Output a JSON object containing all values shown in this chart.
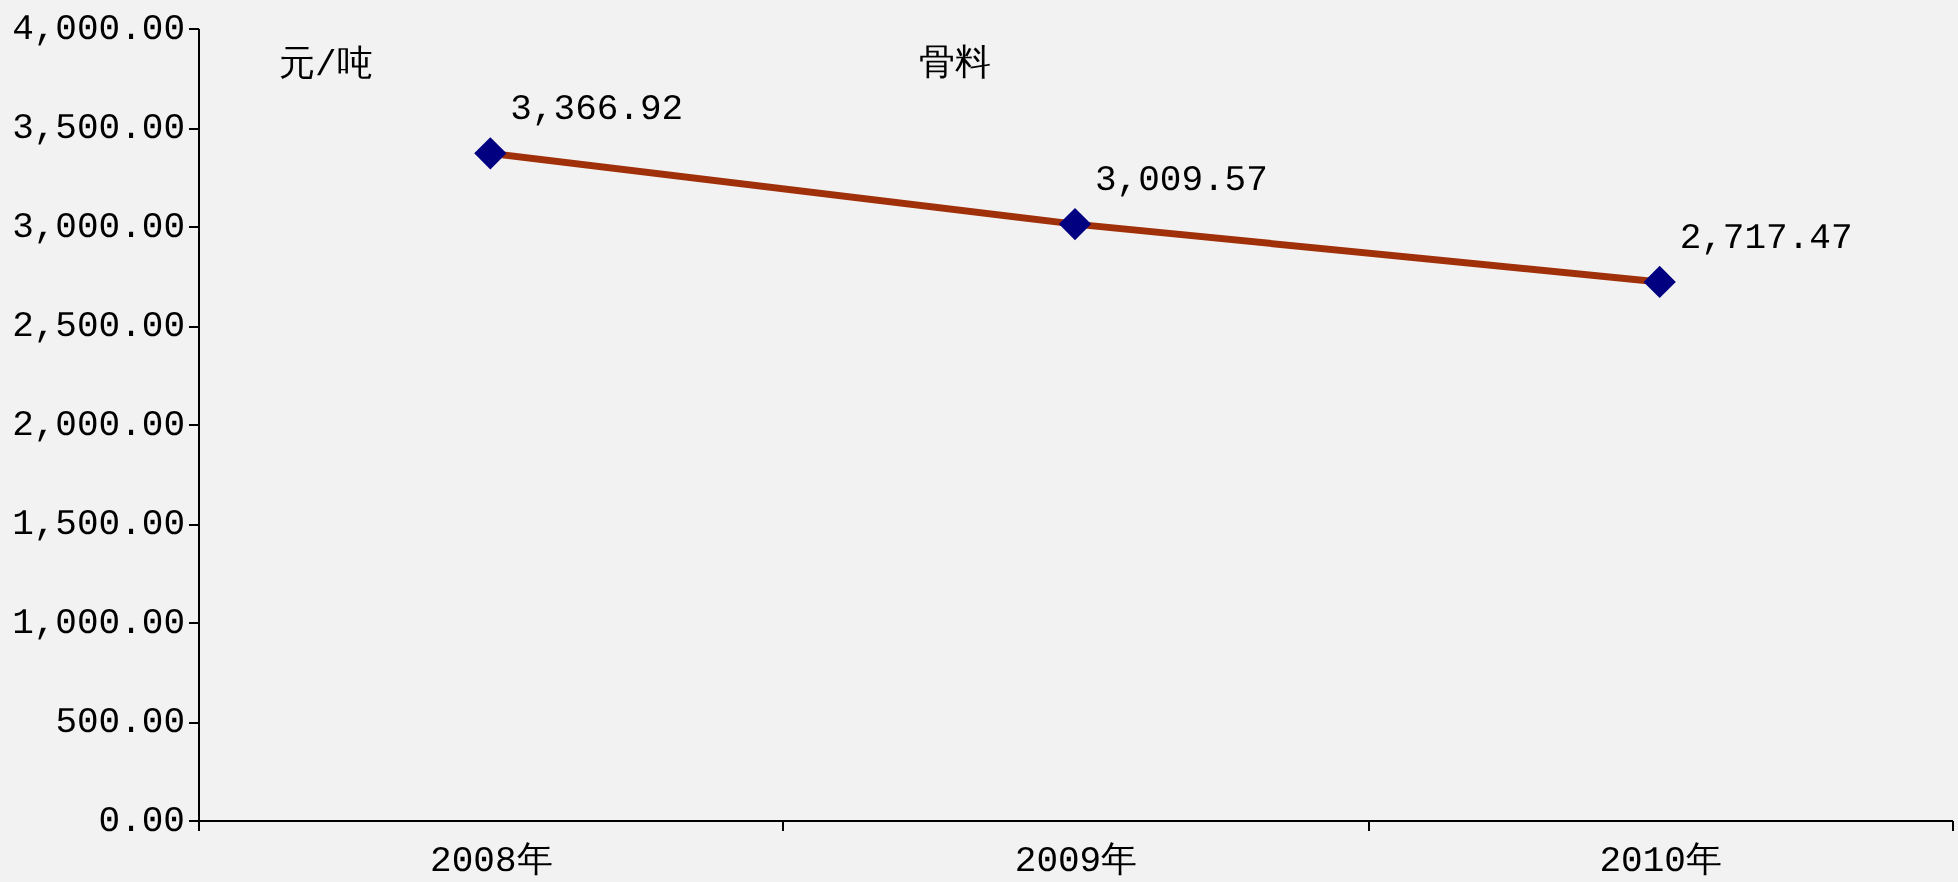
{
  "chart_data": {
    "type": "line",
    "title": "骨料",
    "ylabel": "元/吨",
    "categories": [
      "2008年",
      "2009年",
      "2010年"
    ],
    "series": [
      {
        "color": "#a0300a",
        "values": [
          3366.92,
          3009.57,
          2717.47
        ],
        "value_labels": [
          "3,366.92",
          "3,009.57",
          "2,717.47"
        ]
      }
    ],
    "marker": "diamond",
    "grid": false,
    "legend": false,
    "ylim": [
      0,
      4000
    ],
    "yticks": [
      {
        "value": 0,
        "label": "0.00"
      },
      {
        "value": 500,
        "label": "500.00"
      },
      {
        "value": 1000,
        "label": "1,000.00"
      },
      {
        "value": 1500,
        "label": "1,500.00"
      },
      {
        "value": 2000,
        "label": "2,000.00"
      },
      {
        "value": 2500,
        "label": "2,500.00"
      },
      {
        "value": 3000,
        "label": "3,000.00"
      },
      {
        "value": 3500,
        "label": "3,500.00"
      },
      {
        "value": 4000,
        "label": "4,000.00"
      }
    ]
  }
}
